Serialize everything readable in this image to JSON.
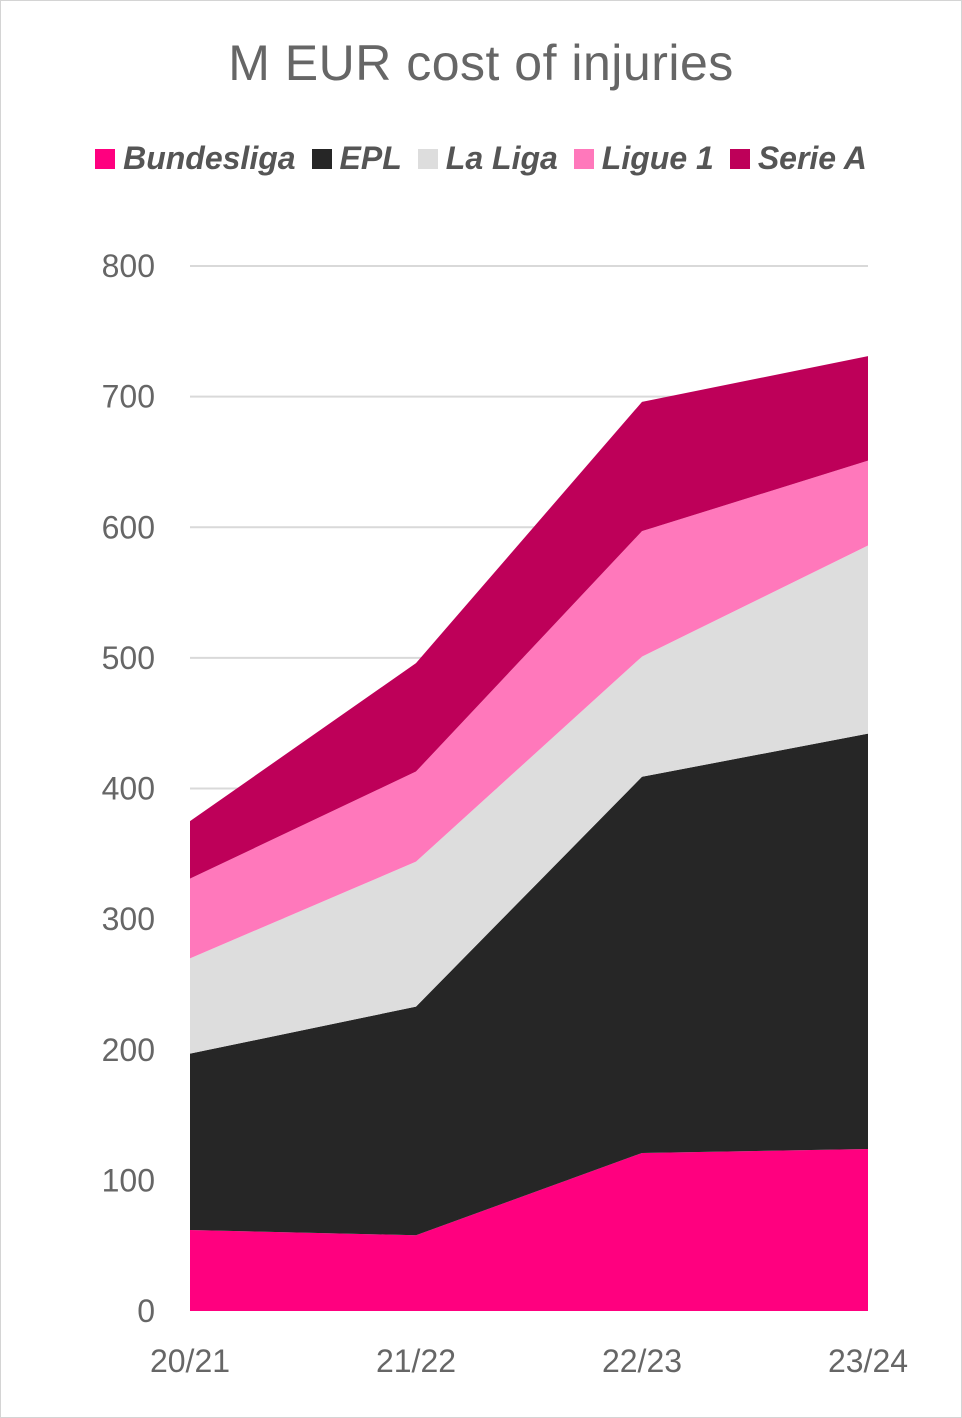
{
  "chart_data": {
    "type": "area",
    "stacked": true,
    "title": "M EUR cost of injuries",
    "categories": [
      "20/21",
      "21/22",
      "22/23",
      "23/24"
    ],
    "series": [
      {
        "name": "Bundesliga",
        "color": "#FF007F",
        "values": [
          62,
          58,
          121,
          124
        ]
      },
      {
        "name": "EPL",
        "color": "#262626",
        "values": [
          135,
          175,
          288,
          318
        ]
      },
      {
        "name": "La Liga",
        "color": "#DDDDDD",
        "values": [
          73,
          111,
          92,
          144
        ]
      },
      {
        "name": "Ligue 1",
        "color": "#FF78BB",
        "values": [
          61,
          69,
          96,
          65
        ]
      },
      {
        "name": "Serie A",
        "color": "#BE0059",
        "values": [
          44,
          83,
          99,
          80
        ]
      }
    ],
    "ylim": [
      0,
      800
    ],
    "yticks": [
      0,
      100,
      200,
      300,
      400,
      500,
      600,
      700,
      800
    ],
    "xlabel": "",
    "ylabel": "",
    "grid": true,
    "legend_position": "top"
  }
}
